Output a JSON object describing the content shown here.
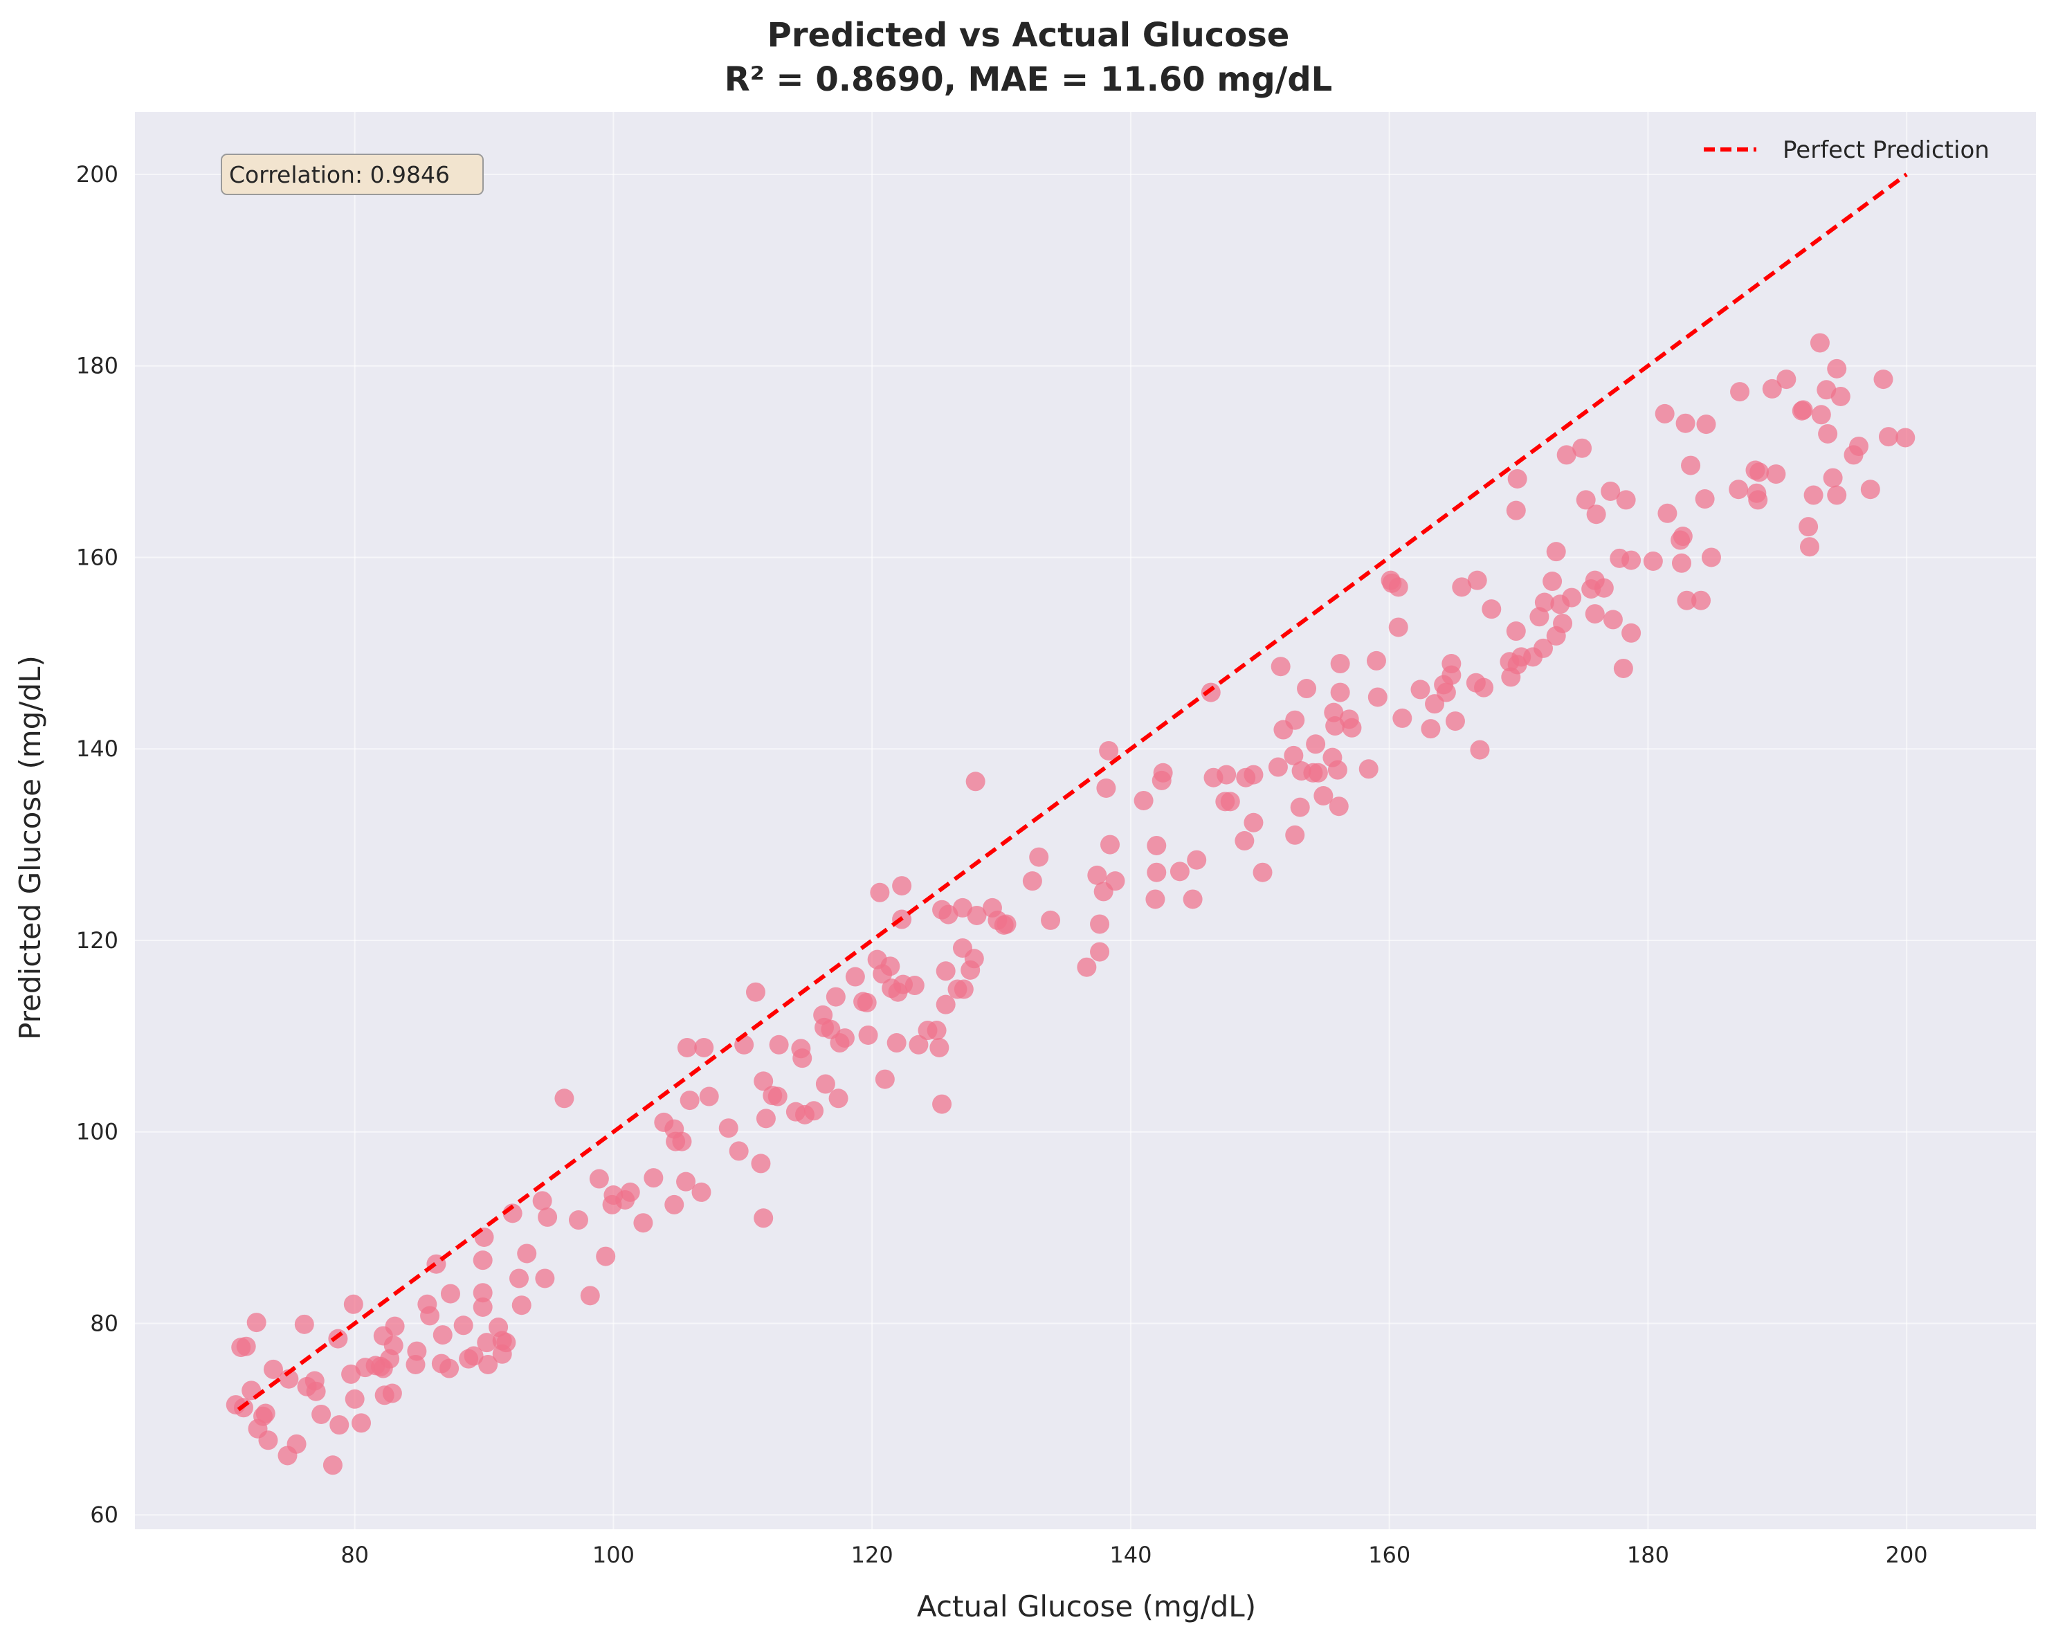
{
  "chart_data": {
    "type": "scatter",
    "title": "Predicted vs Actual Glucose",
    "subtitle": "R² = 0.8690, MAE = 11.60 mg/dL",
    "xlabel": "Actual Glucose (mg/dL)",
    "ylabel": "Predicted Glucose (mg/dL)",
    "xlim": [
      63,
      210
    ],
    "ylim": [
      58.5,
      206.5
    ],
    "xticks": [
      80,
      100,
      120,
      140,
      160,
      180,
      200
    ],
    "yticks": [
      60,
      80,
      100,
      120,
      140,
      160,
      180,
      200
    ],
    "grid": true,
    "legend_position": "top-right",
    "annotation": "Correlation: 0.9846",
    "colors": {
      "points": "#f0728a",
      "reference_line": "#ff0000",
      "background": "#eaeaf2",
      "grid": "#ffffff",
      "annotation_fill": "#f2e4cf",
      "annotation_border": "#9a9a9a"
    },
    "reference_line": {
      "name": "Perfect Prediction",
      "x": [
        71,
        200
      ],
      "y": [
        71,
        200
      ]
    },
    "points": [
      [
        70.8,
        71.5
      ],
      [
        71.2,
        77.5
      ],
      [
        71.6,
        77.6
      ],
      [
        71.4,
        71.2
      ],
      [
        72.0,
        73.0
      ],
      [
        72.4,
        80.1
      ],
      [
        72.5,
        69.0
      ],
      [
        72.9,
        70.3
      ],
      [
        73.1,
        70.6
      ],
      [
        73.3,
        67.8
      ],
      [
        73.7,
        75.2
      ],
      [
        74.8,
        66.2
      ],
      [
        74.9,
        74.2
      ],
      [
        75.5,
        67.4
      ],
      [
        76.1,
        79.9
      ],
      [
        76.3,
        73.4
      ],
      [
        76.9,
        74.0
      ],
      [
        77.0,
        72.9
      ],
      [
        77.4,
        70.5
      ],
      [
        78.3,
        65.2
      ],
      [
        78.7,
        78.4
      ],
      [
        78.8,
        69.4
      ],
      [
        79.7,
        74.7
      ],
      [
        79.9,
        82.0
      ],
      [
        80.0,
        72.1
      ],
      [
        80.5,
        69.6
      ],
      [
        80.8,
        75.4
      ],
      [
        81.6,
        75.6
      ],
      [
        82.0,
        75.5
      ],
      [
        82.2,
        78.7
      ],
      [
        82.2,
        75.3
      ],
      [
        82.3,
        72.5
      ],
      [
        82.7,
        76.3
      ],
      [
        83.0,
        77.7
      ],
      [
        83.1,
        79.7
      ],
      [
        82.9,
        72.7
      ],
      [
        84.7,
        75.7
      ],
      [
        84.8,
        77.1
      ],
      [
        85.6,
        82.0
      ],
      [
        85.8,
        80.8
      ],
      [
        86.3,
        86.2
      ],
      [
        86.7,
        75.8
      ],
      [
        86.8,
        78.8
      ],
      [
        87.3,
        75.3
      ],
      [
        87.4,
        83.1
      ],
      [
        88.4,
        79.8
      ],
      [
        88.8,
        76.3
      ],
      [
        89.2,
        76.6
      ],
      [
        90.0,
        89.0
      ],
      [
        89.9,
        86.6
      ],
      [
        89.9,
        83.2
      ],
      [
        89.9,
        81.7
      ],
      [
        90.2,
        78.0
      ],
      [
        90.3,
        75.7
      ],
      [
        91.1,
        79.6
      ],
      [
        91.4,
        76.8
      ],
      [
        91.4,
        78.2
      ],
      [
        91.7,
        78.0
      ],
      [
        92.2,
        91.5
      ],
      [
        92.7,
        84.7
      ],
      [
        92.9,
        81.9
      ],
      [
        93.3,
        87.3
      ],
      [
        94.5,
        92.8
      ],
      [
        94.7,
        84.7
      ],
      [
        94.9,
        91.1
      ],
      [
        96.2,
        103.5
      ],
      [
        97.3,
        90.8
      ],
      [
        98.2,
        82.9
      ],
      [
        98.9,
        95.1
      ],
      [
        99.4,
        87.0
      ],
      [
        99.9,
        92.4
      ],
      [
        100.0,
        93.4
      ],
      [
        100.9,
        92.9
      ],
      [
        101.3,
        93.7
      ],
      [
        102.3,
        90.5
      ],
      [
        103.1,
        95.2
      ],
      [
        103.9,
        101.0
      ],
      [
        104.7,
        92.4
      ],
      [
        104.7,
        100.3
      ],
      [
        104.8,
        99.0
      ],
      [
        105.3,
        99.0
      ],
      [
        105.6,
        94.8
      ],
      [
        105.7,
        108.8
      ],
      [
        105.9,
        103.3
      ],
      [
        106.8,
        93.7
      ],
      [
        107.0,
        108.8
      ],
      [
        107.4,
        103.7
      ],
      [
        108.9,
        100.4
      ],
      [
        109.7,
        98.0
      ],
      [
        110.1,
        109.1
      ],
      [
        111.0,
        114.6
      ],
      [
        111.4,
        96.7
      ],
      [
        111.6,
        105.3
      ],
      [
        111.6,
        91.0
      ],
      [
        111.8,
        101.4
      ],
      [
        112.3,
        103.8
      ],
      [
        112.7,
        103.7
      ],
      [
        112.8,
        109.1
      ],
      [
        114.1,
        102.1
      ],
      [
        114.5,
        108.7
      ],
      [
        114.6,
        107.7
      ],
      [
        114.8,
        101.8
      ],
      [
        115.5,
        102.2
      ],
      [
        116.2,
        112.2
      ],
      [
        116.3,
        110.9
      ],
      [
        116.4,
        105.0
      ],
      [
        116.8,
        110.7
      ],
      [
        117.2,
        114.1
      ],
      [
        117.4,
        103.5
      ],
      [
        117.5,
        109.3
      ],
      [
        117.9,
        109.8
      ],
      [
        118.7,
        116.2
      ],
      [
        119.3,
        113.6
      ],
      [
        119.6,
        113.5
      ],
      [
        119.7,
        110.1
      ],
      [
        120.4,
        118.0
      ],
      [
        120.6,
        125.0
      ],
      [
        120.8,
        116.5
      ],
      [
        121.0,
        105.5
      ],
      [
        121.4,
        117.3
      ],
      [
        121.5,
        115.0
      ],
      [
        121.9,
        109.3
      ],
      [
        122.0,
        114.6
      ],
      [
        122.3,
        122.2
      ],
      [
        122.3,
        125.7
      ],
      [
        122.4,
        115.4
      ],
      [
        123.3,
        115.3
      ],
      [
        123.6,
        109.1
      ],
      [
        124.3,
        110.6
      ],
      [
        125.0,
        110.6
      ],
      [
        125.2,
        108.8
      ],
      [
        125.4,
        102.9
      ],
      [
        125.4,
        123.2
      ],
      [
        125.7,
        116.8
      ],
      [
        125.7,
        113.3
      ],
      [
        125.9,
        122.7
      ],
      [
        126.6,
        114.9
      ],
      [
        127.0,
        123.4
      ],
      [
        127.0,
        119.2
      ],
      [
        127.1,
        114.9
      ],
      [
        127.6,
        116.9
      ],
      [
        127.9,
        118.1
      ],
      [
        128.0,
        136.6
      ],
      [
        128.1,
        122.6
      ],
      [
        129.3,
        123.4
      ],
      [
        129.7,
        122.1
      ],
      [
        130.2,
        121.6
      ],
      [
        130.4,
        121.7
      ],
      [
        132.4,
        126.2
      ],
      [
        132.9,
        128.7
      ],
      [
        133.8,
        122.1
      ],
      [
        136.6,
        117.2
      ],
      [
        137.4,
        126.8
      ],
      [
        137.6,
        121.7
      ],
      [
        137.6,
        118.8
      ],
      [
        137.9,
        125.1
      ],
      [
        138.1,
        135.9
      ],
      [
        138.3,
        139.8
      ],
      [
        138.4,
        130.0
      ],
      [
        138.8,
        126.2
      ],
      [
        141.0,
        134.6
      ],
      [
        141.9,
        124.3
      ],
      [
        142.0,
        129.9
      ],
      [
        142.0,
        127.1
      ],
      [
        142.4,
        136.7
      ],
      [
        142.5,
        137.5
      ],
      [
        143.8,
        127.2
      ],
      [
        144.8,
        124.3
      ],
      [
        145.1,
        128.4
      ],
      [
        146.2,
        145.9
      ],
      [
        146.4,
        137.0
      ],
      [
        147.3,
        134.5
      ],
      [
        147.4,
        137.3
      ],
      [
        147.7,
        134.5
      ],
      [
        148.8,
        130.4
      ],
      [
        148.9,
        137.0
      ],
      [
        149.5,
        132.3
      ],
      [
        149.5,
        137.3
      ],
      [
        150.2,
        127.1
      ],
      [
        151.4,
        138.1
      ],
      [
        151.6,
        148.6
      ],
      [
        151.8,
        142.0
      ],
      [
        152.6,
        139.3
      ],
      [
        152.7,
        131.0
      ],
      [
        152.7,
        143.0
      ],
      [
        153.1,
        133.9
      ],
      [
        153.2,
        137.7
      ],
      [
        153.6,
        146.3
      ],
      [
        154.1,
        137.5
      ],
      [
        154.3,
        140.5
      ],
      [
        154.5,
        137.5
      ],
      [
        154.9,
        135.1
      ],
      [
        155.6,
        139.1
      ],
      [
        155.7,
        143.8
      ],
      [
        155.8,
        142.4
      ],
      [
        156.0,
        137.8
      ],
      [
        156.1,
        134.0
      ],
      [
        156.2,
        145.9
      ],
      [
        156.2,
        148.9
      ],
      [
        156.9,
        143.1
      ],
      [
        157.1,
        142.2
      ],
      [
        158.4,
        137.9
      ],
      [
        159.0,
        149.2
      ],
      [
        159.1,
        145.4
      ],
      [
        160.1,
        157.6
      ],
      [
        160.2,
        157.3
      ],
      [
        160.7,
        156.9
      ],
      [
        160.7,
        152.7
      ],
      [
        161.0,
        143.2
      ],
      [
        162.4,
        146.2
      ],
      [
        163.2,
        142.1
      ],
      [
        163.5,
        144.7
      ],
      [
        164.2,
        146.7
      ],
      [
        164.4,
        145.9
      ],
      [
        164.8,
        148.9
      ],
      [
        164.8,
        147.7
      ],
      [
        165.1,
        142.9
      ],
      [
        165.6,
        156.9
      ],
      [
        166.7,
        146.9
      ],
      [
        166.8,
        157.6
      ],
      [
        167.0,
        139.9
      ],
      [
        167.3,
        146.4
      ],
      [
        167.9,
        154.6
      ],
      [
        169.3,
        149.1
      ],
      [
        169.4,
        147.5
      ],
      [
        169.8,
        152.3
      ],
      [
        169.9,
        168.2
      ],
      [
        169.8,
        164.9
      ],
      [
        169.9,
        148.8
      ],
      [
        170.2,
        149.6
      ],
      [
        171.1,
        149.6
      ],
      [
        171.6,
        153.8
      ],
      [
        171.9,
        150.5
      ],
      [
        172.0,
        155.3
      ],
      [
        172.6,
        157.5
      ],
      [
        172.9,
        160.6
      ],
      [
        172.9,
        151.8
      ],
      [
        173.2,
        155.1
      ],
      [
        173.4,
        153.1
      ],
      [
        173.7,
        170.7
      ],
      [
        174.1,
        155.8
      ],
      [
        174.9,
        171.4
      ],
      [
        175.2,
        166.0
      ],
      [
        175.6,
        156.7
      ],
      [
        175.9,
        157.6
      ],
      [
        175.9,
        154.1
      ],
      [
        176.0,
        164.5
      ],
      [
        176.6,
        156.8
      ],
      [
        177.1,
        166.9
      ],
      [
        177.3,
        153.5
      ],
      [
        177.8,
        159.9
      ],
      [
        178.1,
        148.4
      ],
      [
        178.3,
        166.0
      ],
      [
        178.7,
        159.7
      ],
      [
        178.7,
        152.1
      ],
      [
        180.4,
        159.6
      ],
      [
        181.3,
        175.0
      ],
      [
        181.5,
        164.6
      ],
      [
        182.5,
        161.8
      ],
      [
        182.6,
        159.4
      ],
      [
        182.7,
        162.2
      ],
      [
        182.9,
        174.0
      ],
      [
        183.0,
        155.5
      ],
      [
        183.3,
        169.6
      ],
      [
        184.1,
        155.5
      ],
      [
        184.4,
        166.1
      ],
      [
        184.5,
        173.9
      ],
      [
        184.9,
        160.0
      ],
      [
        187.0,
        167.1
      ],
      [
        187.1,
        177.3
      ],
      [
        188.3,
        169.1
      ],
      [
        188.4,
        166.7
      ],
      [
        188.5,
        166.0
      ],
      [
        188.6,
        168.9
      ],
      [
        189.6,
        177.6
      ],
      [
        189.9,
        168.7
      ],
      [
        190.7,
        178.6
      ],
      [
        191.9,
        175.3
      ],
      [
        192.0,
        175.4
      ],
      [
        192.4,
        163.2
      ],
      [
        192.5,
        161.1
      ],
      [
        192.8,
        166.5
      ],
      [
        193.3,
        182.4
      ],
      [
        193.4,
        174.9
      ],
      [
        193.8,
        177.5
      ],
      [
        193.9,
        172.9
      ],
      [
        194.3,
        168.3
      ],
      [
        194.6,
        166.5
      ],
      [
        194.6,
        179.7
      ],
      [
        194.9,
        176.8
      ],
      [
        195.9,
        170.7
      ],
      [
        196.3,
        171.6
      ],
      [
        197.2,
        167.1
      ],
      [
        198.2,
        178.6
      ],
      [
        198.6,
        172.6
      ],
      [
        199.9,
        172.5
      ]
    ]
  }
}
